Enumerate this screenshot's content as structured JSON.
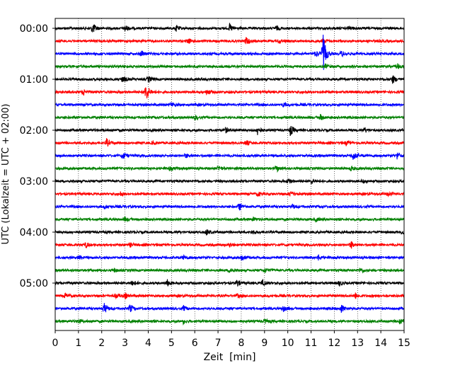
{
  "chart_data": {
    "type": "line",
    "title": "",
    "xlabel": "Zeit  [min]",
    "ylabel": "UTC (Lokalzeit = UTC + 02:00)",
    "xlim": [
      0,
      15
    ],
    "x_ticks": [
      "0",
      "1",
      "2",
      "3",
      "4",
      "5",
      "6",
      "7",
      "8",
      "9",
      "10",
      "11",
      "12",
      "13",
      "14",
      "15"
    ],
    "y_tick_labels": [
      "00:00",
      "01:00",
      "02:00",
      "03:00",
      "04:00",
      "05:00"
    ],
    "y_tick_trace_index": [
      0,
      4,
      8,
      12,
      16,
      20
    ],
    "trace_minutes": 15,
    "grid": "vertical dotted",
    "legend": "none",
    "series_colors": [
      "#000000",
      "#ff0000",
      "#0000ff",
      "#008000"
    ],
    "series": [
      {
        "start": "00:00",
        "color": "#000000",
        "events": [
          {
            "t": 1.6,
            "a": 8
          },
          {
            "t": 3.0,
            "a": 5
          },
          {
            "t": 5.2,
            "a": 4
          },
          {
            "t": 7.5,
            "a": 6
          },
          {
            "t": 9.5,
            "a": 3
          },
          {
            "t": 12.6,
            "a": 3
          }
        ]
      },
      {
        "start": "00:15",
        "color": "#ff0000",
        "events": [
          {
            "t": 5.7,
            "a": 4
          },
          {
            "t": 8.2,
            "a": 6
          },
          {
            "t": 9.6,
            "a": 3
          },
          {
            "t": 11.5,
            "a": 4
          }
        ]
      },
      {
        "start": "00:30",
        "color": "#0000ff",
        "events": [
          {
            "t": 3.7,
            "a": 5
          },
          {
            "t": 11.2,
            "a": 5
          },
          {
            "t": 11.5,
            "a": 30
          },
          {
            "t": 12.3,
            "a": 4
          }
        ]
      },
      {
        "start": "00:45",
        "color": "#008000",
        "events": [
          {
            "t": 11.6,
            "a": 3
          },
          {
            "t": 14.7,
            "a": 4
          }
        ]
      },
      {
        "start": "01:00",
        "color": "#000000",
        "events": [
          {
            "t": 2.9,
            "a": 5
          },
          {
            "t": 4.0,
            "a": 4
          },
          {
            "t": 14.5,
            "a": 6
          }
        ]
      },
      {
        "start": "01:15",
        "color": "#ff0000",
        "events": [
          {
            "t": 1.2,
            "a": 4
          },
          {
            "t": 3.9,
            "a": 14
          },
          {
            "t": 6.5,
            "a": 4
          }
        ]
      },
      {
        "start": "01:30",
        "color": "#0000ff",
        "events": [
          {
            "t": 5.0,
            "a": 3
          },
          {
            "t": 9.8,
            "a": 3
          }
        ]
      },
      {
        "start": "01:45",
        "color": "#008000",
        "events": [
          {
            "t": 6.0,
            "a": 3
          },
          {
            "t": 11.4,
            "a": 4
          }
        ]
      },
      {
        "start": "02:00",
        "color": "#000000",
        "events": [
          {
            "t": 7.3,
            "a": 4
          },
          {
            "t": 8.7,
            "a": 6
          },
          {
            "t": 10.1,
            "a": 8
          },
          {
            "t": 13.3,
            "a": 3
          }
        ]
      },
      {
        "start": "02:15",
        "color": "#ff0000",
        "events": [
          {
            "t": 2.2,
            "a": 6
          },
          {
            "t": 4.2,
            "a": 3
          },
          {
            "t": 8.2,
            "a": 4
          },
          {
            "t": 12.5,
            "a": 3
          }
        ]
      },
      {
        "start": "02:30",
        "color": "#0000ff",
        "events": [
          {
            "t": 2.9,
            "a": 5
          },
          {
            "t": 5.6,
            "a": 3
          },
          {
            "t": 12.8,
            "a": 7
          },
          {
            "t": 14.7,
            "a": 5
          }
        ]
      },
      {
        "start": "02:45",
        "color": "#008000",
        "events": [
          {
            "t": 4.9,
            "a": 3
          },
          {
            "t": 7.0,
            "a": 4
          },
          {
            "t": 9.5,
            "a": 5
          },
          {
            "t": 12.7,
            "a": 3
          }
        ]
      },
      {
        "start": "03:00",
        "color": "#000000",
        "events": [
          {
            "t": 10.0,
            "a": 5
          },
          {
            "t": 11.0,
            "a": 4
          },
          {
            "t": 13.2,
            "a": 3
          }
        ]
      },
      {
        "start": "03:15",
        "color": "#ff0000",
        "events": [
          {
            "t": 2.8,
            "a": 3
          },
          {
            "t": 8.7,
            "a": 3
          },
          {
            "t": 10.1,
            "a": 5
          },
          {
            "t": 14.3,
            "a": 3
          }
        ]
      },
      {
        "start": "03:30",
        "color": "#0000ff",
        "events": [
          {
            "t": 2.1,
            "a": 3
          },
          {
            "t": 7.9,
            "a": 6
          },
          {
            "t": 10.2,
            "a": 3
          }
        ]
      },
      {
        "start": "03:45",
        "color": "#008000",
        "events": [
          {
            "t": 3.0,
            "a": 3
          },
          {
            "t": 8.5,
            "a": 3
          },
          {
            "t": 11.2,
            "a": 3
          }
        ]
      },
      {
        "start": "04:00",
        "color": "#000000",
        "events": [
          {
            "t": 6.5,
            "a": 4
          },
          {
            "t": 8.5,
            "a": 3
          },
          {
            "t": 14.9,
            "a": 4
          }
        ]
      },
      {
        "start": "04:15",
        "color": "#ff0000",
        "events": [
          {
            "t": 1.3,
            "a": 4
          },
          {
            "t": 3.2,
            "a": 3
          },
          {
            "t": 7.5,
            "a": 3
          },
          {
            "t": 12.7,
            "a": 6
          }
        ]
      },
      {
        "start": "04:30",
        "color": "#0000ff",
        "events": [
          {
            "t": 1.0,
            "a": 4
          },
          {
            "t": 5.5,
            "a": 3
          },
          {
            "t": 8.0,
            "a": 5
          },
          {
            "t": 11.3,
            "a": 4
          }
        ]
      },
      {
        "start": "04:45",
        "color": "#008000",
        "events": [
          {
            "t": 2.5,
            "a": 3
          },
          {
            "t": 7.5,
            "a": 4
          },
          {
            "t": 9.0,
            "a": 4
          },
          {
            "t": 13.1,
            "a": 4
          }
        ]
      },
      {
        "start": "05:00",
        "color": "#000000",
        "events": [
          {
            "t": 3.3,
            "a": 5
          },
          {
            "t": 4.8,
            "a": 5
          },
          {
            "t": 7.8,
            "a": 5
          },
          {
            "t": 8.9,
            "a": 6
          },
          {
            "t": 12.2,
            "a": 4
          }
        ]
      },
      {
        "start": "05:15",
        "color": "#ff0000",
        "events": [
          {
            "t": 0.4,
            "a": 4
          },
          {
            "t": 2.6,
            "a": 4
          },
          {
            "t": 3.0,
            "a": 4
          },
          {
            "t": 7.8,
            "a": 3
          },
          {
            "t": 12.9,
            "a": 4
          }
        ]
      },
      {
        "start": "05:30",
        "color": "#0000ff",
        "events": [
          {
            "t": 2.1,
            "a": 8
          },
          {
            "t": 3.2,
            "a": 6
          },
          {
            "t": 5.5,
            "a": 4
          },
          {
            "t": 9.8,
            "a": 4
          },
          {
            "t": 12.3,
            "a": 6
          }
        ]
      },
      {
        "start": "05:45",
        "color": "#008000",
        "events": [
          {
            "t": 1.0,
            "a": 3
          },
          {
            "t": 5.5,
            "a": 3
          },
          {
            "t": 9.0,
            "a": 3
          },
          {
            "t": 14.8,
            "a": 6
          }
        ]
      }
    ]
  }
}
